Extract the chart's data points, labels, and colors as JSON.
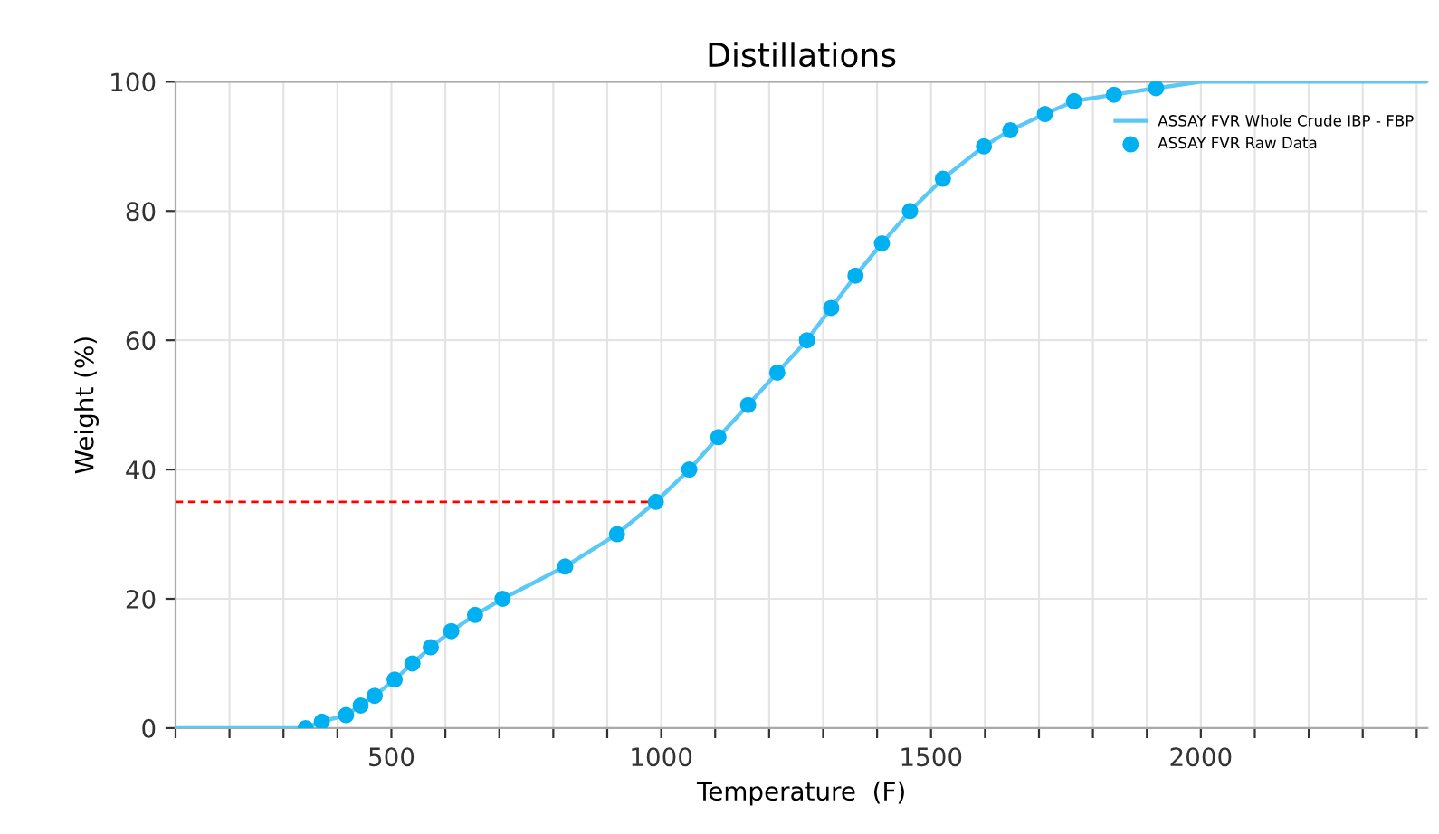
{
  "chart_data": {
    "type": "scatter",
    "title": "Distillations",
    "xlabel": "Temperature  (F)",
    "ylabel": "Weight (%)",
    "xlim": [
      100,
      2420
    ],
    "ylim": [
      0,
      100
    ],
    "xticks": [
      {
        "value": 100,
        "label": null
      },
      {
        "value": 200,
        "label": null
      },
      {
        "value": 300,
        "label": null
      },
      {
        "value": 400,
        "label": null
      },
      500,
      {
        "value": 600,
        "label": null
      },
      {
        "value": 700,
        "label": null
      },
      {
        "value": 800,
        "label": null
      },
      {
        "value": 900,
        "label": null
      },
      1000,
      {
        "value": 1100,
        "label": null
      },
      {
        "value": 1200,
        "label": null
      },
      {
        "value": 1300,
        "label": null
      },
      {
        "value": 1400,
        "label": null
      },
      1500,
      {
        "value": 1600,
        "label": null
      },
      {
        "value": 1700,
        "label": null
      },
      {
        "value": 1800,
        "label": null
      },
      {
        "value": 1900,
        "label": null
      },
      2000,
      {
        "value": 2100,
        "label": null
      },
      {
        "value": 2200,
        "label": null
      },
      {
        "value": 2300,
        "label": null
      },
      {
        "value": 2400,
        "label": null
      }
    ],
    "yticks": [
      0,
      20,
      40,
      60,
      80,
      100
    ],
    "grid": true,
    "legend": "top right",
    "series": [
      {
        "name": "ASSAY FVR Whole Crude IBP - FBP",
        "type": "line",
        "color": "#5bc8f5",
        "marker": "none",
        "line_style": "solid",
        "x": [
          100,
          341,
          371,
          416,
          443,
          469,
          506,
          539,
          573,
          611,
          655,
          706,
          822,
          918,
          990,
          1052,
          1106,
          1161,
          1215,
          1270,
          1315,
          1360,
          1409,
          1461,
          1522,
          1598,
          1647,
          1711,
          1765,
          1839,
          1917,
          2000,
          2420
        ],
        "values": [
          0,
          0,
          1,
          2,
          3.5,
          5,
          7.5,
          10,
          12.5,
          15,
          17.5,
          20,
          25,
          30,
          35,
          40,
          45,
          50,
          55,
          60,
          65,
          70,
          75,
          80,
          85,
          90,
          92.5,
          95,
          97,
          98,
          99,
          100,
          100
        ]
      },
      {
        "name": "ASSAY FVR Raw Data",
        "color": "#00b0f0",
        "marker": "circle",
        "x": [
          341,
          371,
          416,
          443,
          469,
          506,
          539,
          573,
          611,
          655,
          706,
          822,
          918,
          990,
          1052,
          1106,
          1161,
          1215,
          1270,
          1315,
          1360,
          1409,
          1461,
          1522,
          1598,
          1647,
          1711,
          1765,
          1839,
          1917
        ],
        "values": [
          0,
          1,
          2,
          3.5,
          5,
          7.5,
          10,
          12.5,
          15,
          17.5,
          20,
          25,
          30,
          35,
          40,
          45,
          50,
          55,
          60,
          65,
          70,
          75,
          80,
          85,
          90,
          92.5,
          95,
          97,
          98,
          99
        ]
      },
      {
        "type": "line",
        "color": "#ff0000",
        "marker": "none",
        "line_style": "dashed",
        "x": [
          100,
          990
        ],
        "values": [
          35,
          35
        ]
      }
    ]
  }
}
